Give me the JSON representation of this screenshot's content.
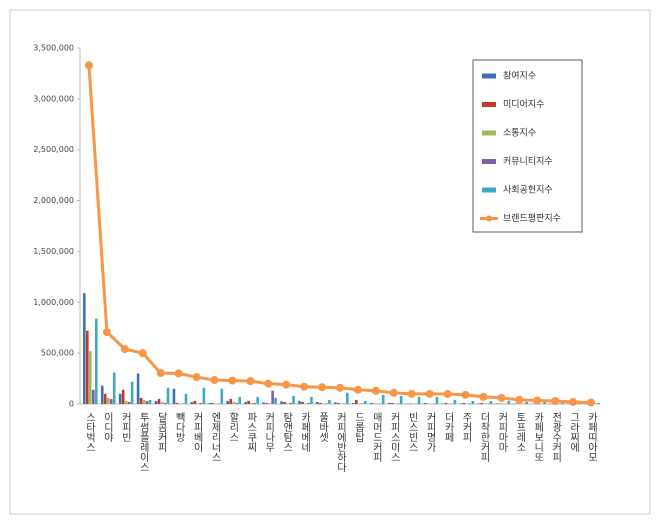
{
  "chart_data": {
    "type": "bar",
    "categories": [
      "스타벅스",
      "이디야",
      "커피빈",
      "투썸플레이스",
      "달콤커피",
      "빽다방",
      "커피베이",
      "엔제리너스",
      "할리스",
      "파스쿠찌",
      "커피나무",
      "탐앤탐스",
      "카페베네",
      "풀바셋",
      "커피에반하다",
      "드롭탑",
      "매머드커피",
      "커피스미스",
      "빈스빈스",
      "커피명가",
      "더카페",
      "주커피",
      "더착한커피",
      "커피마마",
      "토프레소",
      "카페보니또",
      "전광수커피",
      "그라찌에",
      "카페띠아모"
    ],
    "series": [
      {
        "name": "참여지수",
        "color": "#3f6fb6",
        "values": [
          1090000,
          180000,
          100000,
          300000,
          30000,
          150000,
          20000,
          10000,
          30000,
          20000,
          15000,
          25000,
          30000,
          20000,
          15000,
          10000,
          10000,
          10000,
          5000,
          10000,
          5000,
          5000,
          5000,
          5000,
          5000,
          3000,
          3000,
          2000,
          2000
        ]
      },
      {
        "name": "미디어지수",
        "color": "#c0392b",
        "values": [
          720000,
          100000,
          140000,
          60000,
          50000,
          10000,
          30000,
          10000,
          50000,
          30000,
          10000,
          20000,
          20000,
          10000,
          10000,
          40000,
          5000,
          10000,
          5000,
          5000,
          10000,
          10000,
          10000,
          5000,
          3000,
          3000,
          3000,
          2000,
          2000
        ]
      },
      {
        "name": "소통지수",
        "color": "#9bbb59",
        "values": [
          520000,
          60000,
          30000,
          40000,
          20000,
          5000,
          5000,
          5000,
          20000,
          10000,
          5000,
          5000,
          5000,
          5000,
          5000,
          5000,
          5000,
          5000,
          3000,
          3000,
          3000,
          3000,
          3000,
          2000,
          2000,
          2000,
          2000,
          1000,
          1000
        ]
      },
      {
        "name": "커뮤니티지수",
        "color": "#7f5fa8",
        "values": [
          140000,
          50000,
          20000,
          30000,
          10000,
          5000,
          10000,
          5000,
          10000,
          10000,
          130000,
          10000,
          10000,
          5000,
          5000,
          5000,
          5000,
          5000,
          3000,
          3000,
          3000,
          3000,
          3000,
          2000,
          2000,
          2000,
          2000,
          1000,
          1000
        ]
      },
      {
        "name": "사회공헌지수",
        "color": "#3fa9c6",
        "values": [
          840000,
          310000,
          220000,
          40000,
          160000,
          100000,
          160000,
          150000,
          70000,
          70000,
          60000,
          80000,
          70000,
          40000,
          110000,
          30000,
          90000,
          80000,
          70000,
          70000,
          40000,
          30000,
          30000,
          30000,
          20000,
          20000,
          10000,
          10000,
          10000
        ]
      },
      {
        "name": "브랜드평판지수",
        "color": "#f79646",
        "type": "line",
        "values": [
          3330000,
          708000,
          540000,
          500000,
          305000,
          300000,
          265000,
          236000,
          230000,
          225000,
          200000,
          190000,
          170000,
          165000,
          160000,
          140000,
          130000,
          110000,
          100000,
          100000,
          98000,
          90000,
          70000,
          60000,
          40000,
          35000,
          30000,
          20000,
          15000
        ]
      }
    ],
    "ylim": [
      0,
      3500000
    ],
    "yticks": [
      0,
      {
        "value": 500000,
        "label": "500,000"
      },
      {
        "value": 1000000,
        "label": "1,000,000"
      },
      {
        "value": 1500000,
        "label": "1,500,000"
      },
      {
        "value": 2000000,
        "label": "2,000,000"
      },
      {
        "value": 2500000,
        "label": "2,500,000"
      },
      {
        "value": 3000000,
        "label": "3,000,000"
      },
      {
        "value": 3500000,
        "label": "3,500,000"
      }
    ],
    "legend": "right"
  }
}
